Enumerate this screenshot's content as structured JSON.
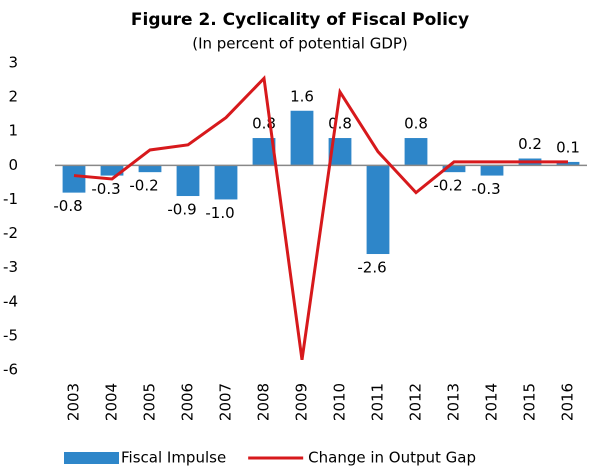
{
  "chart_data": {
    "type": "combo",
    "title": "Figure 2. Cyclicality of Fiscal Policy",
    "subtitle": "(In percent of potential GDP)",
    "categories": [
      "2003",
      "2004",
      "2005",
      "2006",
      "2007",
      "2008",
      "2009",
      "2010",
      "2011",
      "2012",
      "2013",
      "2014",
      "2015",
      "2016"
    ],
    "series": [
      {
        "name": "Fiscal Impulse",
        "type": "bar",
        "color": "#2e86c9",
        "values": [
          -0.8,
          -0.3,
          -0.2,
          -0.9,
          -1.0,
          0.8,
          1.6,
          0.8,
          -2.6,
          0.8,
          -0.2,
          -0.3,
          0.2,
          0.1
        ],
        "value_labels": [
          "-0.8",
          "-0.3",
          "-0.2",
          "-0.9",
          "-1.0",
          "0.8",
          "1.6",
          "0.8",
          "-2.6",
          "0.8",
          "-0.2",
          "-0.3",
          "0.2",
          "0.1"
        ]
      },
      {
        "name": "Change in Output Gap",
        "type": "line",
        "color": "#d7191c",
        "values": [
          -0.3,
          -0.4,
          0.45,
          0.6,
          1.4,
          2.55,
          -5.7,
          2.15,
          0.4,
          -0.8,
          0.1,
          0.1,
          0.1,
          0.1
        ]
      }
    ],
    "ylim": [
      -6,
      3
    ],
    "yticks": [
      -6,
      -5,
      -4,
      -3,
      -2,
      -1,
      0,
      1,
      2,
      3
    ],
    "grid": false,
    "legend": "bottom"
  }
}
